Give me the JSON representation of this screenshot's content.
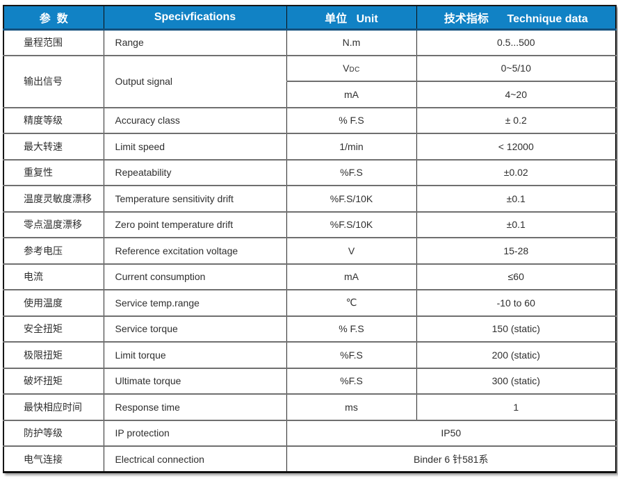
{
  "table": {
    "title_semantic": "Torque sensor technical specifications",
    "colors": {
      "header_bg": "#1182c5",
      "header_text": "#ffffff",
      "header_underline": "#14517e",
      "row_separator": "#6f6f6f",
      "column_separator": "#2b2b2b",
      "outer_border": "#151515",
      "body_text": "#2e2e2e"
    },
    "header": {
      "param": "参  数",
      "spec": "Specivfications",
      "unit": "单位   Unit",
      "tech": "技术指标      Technique data"
    },
    "rows": [
      {
        "cn": "量程范围",
        "en": "Range",
        "unit": "N.m",
        "value": "0.5...500"
      },
      {
        "cn": "输出信号",
        "en": "Output signal",
        "unit": "V",
        "unit_sub": "DC",
        "value": "0~5/10",
        "unit2": "mA",
        "value2": "4~20"
      },
      {
        "cn": "精度等级",
        "en": "Accuracy class",
        "unit": "% F.S",
        "value": "± 0.2"
      },
      {
        "cn": "最大转速",
        "en": "Limit speed",
        "unit": "1/min",
        "value": "< 12000"
      },
      {
        "cn": "重复性",
        "en": "Repeatability",
        "unit": "%F.S",
        "value": "±0.02"
      },
      {
        "cn": "温度灵敏度漂移",
        "en": "Temperature sensitivity drift",
        "unit": "%F.S/10K",
        "value": "±0.1"
      },
      {
        "cn": "零点温度漂移",
        "en": "Zero point temperature drift",
        "unit": "%F.S/10K",
        "value": "±0.1"
      },
      {
        "cn": "参考电压",
        "en": "Reference excitation voltage",
        "unit": "V",
        "value": "15-28"
      },
      {
        "cn": "电流",
        "en": "Current consumption",
        "unit": "mA",
        "value": "≤60"
      },
      {
        "cn": "使用温度",
        "en": "Service temp.range",
        "unit": "℃",
        "value": "-10 to 60"
      },
      {
        "cn": "安全扭矩",
        "en": "Service torque",
        "unit": "% F.S",
        "value": "150 (static)"
      },
      {
        "cn": "极限扭矩",
        "en": "Limit torque",
        "unit": "%F.S",
        "value": "200 (static)"
      },
      {
        "cn": "破坏扭矩",
        "en": "Ultimate torque",
        "unit": "%F.S",
        "value": "300 (static)"
      },
      {
        "cn": "最快相应时间",
        "en": "Response time",
        "unit": "ms",
        "value": "1"
      },
      {
        "cn": "防护等级",
        "en": "IP protection",
        "merged_value": "IP50"
      },
      {
        "cn": "电气连接",
        "en": "Electrical connection",
        "merged_value": "Binder 6 针581系"
      }
    ]
  }
}
